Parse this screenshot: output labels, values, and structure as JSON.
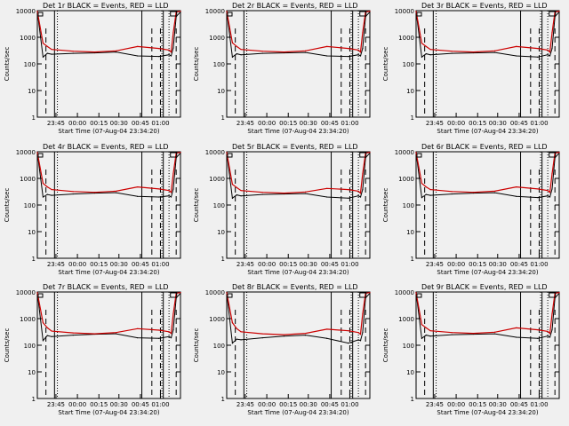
{
  "chart_data": [
    {
      "title": "Det 1r BLACK = Events, RED = LLD",
      "ylabel": "Counts/sec",
      "xlabel": "Start Time (07-Aug-04 23:34:20)",
      "type": "line",
      "yscale": "log",
      "ylim": [
        1,
        10000
      ],
      "yticks": [
        "1",
        "10",
        "100",
        "1000",
        "10000"
      ],
      "xticks": [
        "23:45",
        "00:00",
        "00:15",
        "00:30",
        "00:45",
        "01:00"
      ],
      "series": [
        {
          "color": "#000000",
          "x": [
            0,
            0.04,
            0.07,
            0.1,
            0.25,
            0.4,
            0.55,
            0.7,
            0.85,
            0.92,
            0.935,
            0.95,
            0.97,
            1.0
          ],
          "y": [
            9500,
            180,
            250,
            230,
            250,
            260,
            280,
            200,
            190,
            220,
            200,
            400,
            6000,
            9000
          ]
        },
        {
          "color": "#cc0000",
          "x": [
            0,
            0.04,
            0.07,
            0.1,
            0.25,
            0.4,
            0.55,
            0.7,
            0.85,
            0.92,
            0.935,
            0.95,
            0.97,
            1.0
          ],
          "y": [
            9500,
            600,
            450,
            350,
            300,
            280,
            310,
            450,
            380,
            330,
            280,
            1500,
            9000,
            9500
          ]
        }
      ],
      "vlines": {
        "solid": [
          0.12,
          0.73,
          0.88
        ],
        "dashed": [
          0.06,
          0.8,
          0.86,
          0.97
        ],
        "dotted": [
          0.14,
          0.87,
          0.92
        ]
      }
    },
    {
      "title": "Det 2r BLACK = Events, RED = LLD",
      "ylabel": "Counts/sec",
      "xlabel": "Start Time (07-Aug-04 23:34:20)",
      "type": "line",
      "yscale": "log",
      "ylim": [
        1,
        10000
      ],
      "yticks": [
        "1",
        "10",
        "100",
        "1000",
        "10000"
      ],
      "xticks": [
        "23:45",
        "00:00",
        "00:15",
        "00:30",
        "00:45",
        "01:00"
      ],
      "series": [
        {
          "color": "#000000",
          "x": [
            0,
            0.04,
            0.07,
            0.1,
            0.25,
            0.4,
            0.55,
            0.7,
            0.85,
            0.92,
            0.935,
            0.95,
            0.97,
            1.0
          ],
          "y": [
            9500,
            180,
            240,
            220,
            250,
            260,
            270,
            200,
            190,
            220,
            200,
            380,
            6000,
            9000
          ]
        },
        {
          "color": "#cc0000",
          "x": [
            0,
            0.04,
            0.07,
            0.1,
            0.25,
            0.4,
            0.55,
            0.7,
            0.85,
            0.92,
            0.935,
            0.95,
            0.97,
            1.0
          ],
          "y": [
            9500,
            620,
            450,
            350,
            300,
            280,
            310,
            450,
            380,
            330,
            280,
            1500,
            9000,
            9500
          ]
        }
      ],
      "vlines": {
        "solid": [
          0.12,
          0.73,
          0.88
        ],
        "dashed": [
          0.06,
          0.8,
          0.86,
          0.97
        ],
        "dotted": [
          0.14,
          0.87,
          0.92
        ]
      }
    },
    {
      "title": "Det 3r BLACK = Events, RED = LLD",
      "ylabel": "Counts/sec",
      "xlabel": "Start Time (07-Aug-04 23:34:20)",
      "type": "line",
      "yscale": "log",
      "ylim": [
        1,
        10000
      ],
      "yticks": [
        "1",
        "10",
        "100",
        "1000",
        "10000"
      ],
      "xticks": [
        "23:45",
        "00:00",
        "00:15",
        "00:30",
        "00:45",
        "01:00"
      ],
      "series": [
        {
          "color": "#000000",
          "x": [
            0,
            0.04,
            0.07,
            0.1,
            0.25,
            0.4,
            0.55,
            0.7,
            0.85,
            0.92,
            0.935,
            0.95,
            0.97,
            1.0
          ],
          "y": [
            9500,
            180,
            240,
            220,
            250,
            260,
            270,
            200,
            180,
            220,
            200,
            380,
            6000,
            9000
          ]
        },
        {
          "color": "#cc0000",
          "x": [
            0,
            0.04,
            0.07,
            0.1,
            0.25,
            0.4,
            0.55,
            0.7,
            0.85,
            0.92,
            0.935,
            0.95,
            0.97,
            1.0
          ],
          "y": [
            9500,
            600,
            450,
            350,
            300,
            280,
            310,
            450,
            380,
            330,
            280,
            1500,
            9000,
            9500
          ]
        }
      ],
      "vlines": {
        "solid": [
          0.12,
          0.73,
          0.88
        ],
        "dashed": [
          0.06,
          0.8,
          0.86,
          0.97
        ],
        "dotted": [
          0.14,
          0.87,
          0.92
        ]
      }
    },
    {
      "title": "Det 4r BLACK = Events, RED = LLD",
      "ylabel": "Counts/sec",
      "xlabel": "Start Time (07-Aug-04 23:34:20)",
      "type": "line",
      "yscale": "log",
      "ylim": [
        1,
        10000
      ],
      "yticks": [
        "1",
        "10",
        "100",
        "1000",
        "10000"
      ],
      "xticks": [
        "23:45",
        "00:00",
        "00:15",
        "00:30",
        "00:45",
        "01:00"
      ],
      "series": [
        {
          "color": "#000000",
          "x": [
            0,
            0.04,
            0.07,
            0.1,
            0.25,
            0.4,
            0.55,
            0.7,
            0.85,
            0.92,
            0.935,
            0.95,
            0.97,
            1.0
          ],
          "y": [
            9500,
            200,
            250,
            230,
            260,
            280,
            290,
            210,
            200,
            220,
            200,
            400,
            6000,
            9000
          ]
        },
        {
          "color": "#cc0000",
          "x": [
            0,
            0.04,
            0.07,
            0.1,
            0.25,
            0.4,
            0.55,
            0.7,
            0.85,
            0.92,
            0.935,
            0.95,
            0.97,
            1.0
          ],
          "y": [
            9500,
            650,
            480,
            380,
            320,
            300,
            330,
            480,
            400,
            350,
            300,
            1500,
            9000,
            9500
          ]
        }
      ],
      "vlines": {
        "solid": [
          0.12,
          0.73,
          0.88
        ],
        "dashed": [
          0.06,
          0.8,
          0.86,
          0.97
        ],
        "dotted": [
          0.14,
          0.87,
          0.92
        ]
      }
    },
    {
      "title": "Det 5r BLACK = Events, RED = LLD",
      "ylabel": "Counts/sec",
      "xlabel": "Start Time (07-Aug-04 23:34:20)",
      "type": "line",
      "yscale": "log",
      "ylim": [
        1,
        10000
      ],
      "yticks": [
        "1",
        "10",
        "100",
        "1000",
        "10000"
      ],
      "xticks": [
        "23:45",
        "00:00",
        "00:15",
        "00:30",
        "00:45",
        "01:00"
      ],
      "series": [
        {
          "color": "#000000",
          "x": [
            0,
            0.04,
            0.07,
            0.1,
            0.25,
            0.4,
            0.55,
            0.7,
            0.85,
            0.92,
            0.935,
            0.95,
            0.97,
            1.0
          ],
          "y": [
            9500,
            180,
            240,
            220,
            250,
            260,
            270,
            200,
            180,
            220,
            200,
            380,
            6000,
            9000
          ]
        },
        {
          "color": "#cc0000",
          "x": [
            0,
            0.04,
            0.07,
            0.1,
            0.25,
            0.4,
            0.55,
            0.7,
            0.85,
            0.92,
            0.935,
            0.95,
            0.97,
            1.0
          ],
          "y": [
            9500,
            600,
            450,
            350,
            300,
            280,
            310,
            420,
            380,
            330,
            280,
            1500,
            9000,
            9500
          ]
        }
      ],
      "vlines": {
        "solid": [
          0.12,
          0.73,
          0.88
        ],
        "dashed": [
          0.06,
          0.8,
          0.86,
          0.97
        ],
        "dotted": [
          0.14,
          0.87,
          0.92
        ]
      }
    },
    {
      "title": "Det 6r BLACK = Events, RED = LLD",
      "ylabel": "Counts/sec",
      "xlabel": "Start Time (07-Aug-04 23:34:20)",
      "type": "line",
      "yscale": "log",
      "ylim": [
        1,
        10000
      ],
      "yticks": [
        "1",
        "10",
        "100",
        "1000",
        "10000"
      ],
      "xticks": [
        "23:45",
        "00:00",
        "00:15",
        "00:30",
        "00:45",
        "01:00"
      ],
      "series": [
        {
          "color": "#000000",
          "x": [
            0,
            0.04,
            0.07,
            0.1,
            0.25,
            0.4,
            0.55,
            0.7,
            0.85,
            0.92,
            0.935,
            0.95,
            0.97,
            1.0
          ],
          "y": [
            9500,
            190,
            250,
            230,
            260,
            280,
            290,
            210,
            190,
            220,
            200,
            400,
            6000,
            9000
          ]
        },
        {
          "color": "#cc0000",
          "x": [
            0,
            0.04,
            0.07,
            0.1,
            0.25,
            0.4,
            0.55,
            0.7,
            0.85,
            0.92,
            0.935,
            0.95,
            0.97,
            1.0
          ],
          "y": [
            9500,
            650,
            480,
            380,
            320,
            300,
            330,
            480,
            400,
            350,
            300,
            1500,
            9000,
            9500
          ]
        }
      ],
      "vlines": {
        "solid": [
          0.12,
          0.73,
          0.88
        ],
        "dashed": [
          0.06,
          0.8,
          0.86,
          0.97
        ],
        "dotted": [
          0.14,
          0.87,
          0.92
        ]
      }
    },
    {
      "title": "Det 7r BLACK = Events, RED = LLD",
      "ylabel": "Counts/sec",
      "xlabel": "Start Time (07-Aug-04 23:34:20)",
      "type": "line",
      "yscale": "log",
      "ylim": [
        1,
        10000
      ],
      "yticks": [
        "1",
        "10",
        "100",
        "1000",
        "10000"
      ],
      "xticks": [
        "23:45",
        "00:00",
        "00:15",
        "00:30",
        "00:45",
        "01:00"
      ],
      "series": [
        {
          "color": "#000000",
          "x": [
            0,
            0.04,
            0.07,
            0.1,
            0.25,
            0.4,
            0.55,
            0.7,
            0.85,
            0.92,
            0.935,
            0.95,
            0.97,
            1.0
          ],
          "y": [
            9500,
            150,
            230,
            210,
            240,
            260,
            270,
            190,
            180,
            210,
            190,
            380,
            6000,
            9000
          ]
        },
        {
          "color": "#cc0000",
          "x": [
            0,
            0.04,
            0.07,
            0.1,
            0.25,
            0.4,
            0.55,
            0.7,
            0.85,
            0.92,
            0.935,
            0.95,
            0.97,
            1.0
          ],
          "y": [
            9500,
            700,
            450,
            340,
            290,
            270,
            300,
            420,
            370,
            320,
            280,
            1500,
            9000,
            9500
          ]
        }
      ],
      "vlines": {
        "solid": [
          0.12,
          0.73,
          0.88
        ],
        "dashed": [
          0.06,
          0.8,
          0.86,
          0.97
        ],
        "dotted": [
          0.14,
          0.87,
          0.92
        ]
      }
    },
    {
      "title": "Det 8r BLACK = Events, RED = LLD",
      "ylabel": "Counts/sec",
      "xlabel": "Start Time (07-Aug-04 23:34:20)",
      "type": "line",
      "yscale": "log",
      "ylim": [
        1,
        10000
      ],
      "yticks": [
        "1",
        "10",
        "100",
        "1000",
        "10000"
      ],
      "xticks": [
        "23:45",
        "00:00",
        "00:15",
        "00:30",
        "00:45",
        "01:00"
      ],
      "series": [
        {
          "color": "#000000",
          "x": [
            0,
            0.04,
            0.07,
            0.1,
            0.25,
            0.4,
            0.55,
            0.7,
            0.85,
            0.92,
            0.935,
            0.95,
            0.97,
            1.0
          ],
          "y": [
            9500,
            120,
            170,
            160,
            190,
            220,
            240,
            180,
            120,
            160,
            150,
            300,
            6000,
            9000
          ]
        },
        {
          "color": "#cc0000",
          "x": [
            0,
            0.04,
            0.07,
            0.1,
            0.25,
            0.4,
            0.55,
            0.7,
            0.85,
            0.92,
            0.935,
            0.95,
            0.97,
            1.0
          ],
          "y": [
            9500,
            700,
            420,
            320,
            270,
            250,
            280,
            400,
            350,
            300,
            260,
            1500,
            9000,
            9500
          ]
        }
      ],
      "vlines": {
        "solid": [
          0.12,
          0.73,
          0.88
        ],
        "dashed": [
          0.06,
          0.8,
          0.86,
          0.97
        ],
        "dotted": [
          0.14,
          0.87,
          0.92
        ]
      }
    },
    {
      "title": "Det 9r BLACK = Events, RED = LLD",
      "ylabel": "Counts/sec",
      "xlabel": "Start Time (07-Aug-04 23:34:20)",
      "type": "line",
      "yscale": "log",
      "ylim": [
        1,
        10000
      ],
      "yticks": [
        "1",
        "10",
        "100",
        "1000",
        "10000"
      ],
      "xticks": [
        "23:45",
        "00:00",
        "00:15",
        "00:30",
        "00:45",
        "01:00"
      ],
      "series": [
        {
          "color": "#000000",
          "x": [
            0,
            0.04,
            0.07,
            0.1,
            0.25,
            0.4,
            0.55,
            0.7,
            0.85,
            0.92,
            0.935,
            0.95,
            0.97,
            1.0
          ],
          "y": [
            9500,
            180,
            240,
            220,
            250,
            260,
            270,
            200,
            180,
            220,
            200,
            380,
            6000,
            9000
          ]
        },
        {
          "color": "#cc0000",
          "x": [
            0,
            0.04,
            0.07,
            0.1,
            0.25,
            0.4,
            0.55,
            0.7,
            0.85,
            0.92,
            0.935,
            0.95,
            0.97,
            1.0
          ],
          "y": [
            9500,
            600,
            450,
            350,
            300,
            280,
            310,
            450,
            380,
            330,
            280,
            1500,
            9000,
            9500
          ]
        }
      ],
      "vlines": {
        "solid": [
          0.12,
          0.73,
          0.88
        ],
        "dashed": [
          0.06,
          0.8,
          0.86,
          0.97
        ],
        "dotted": [
          0.14,
          0.87,
          0.92
        ]
      }
    }
  ]
}
